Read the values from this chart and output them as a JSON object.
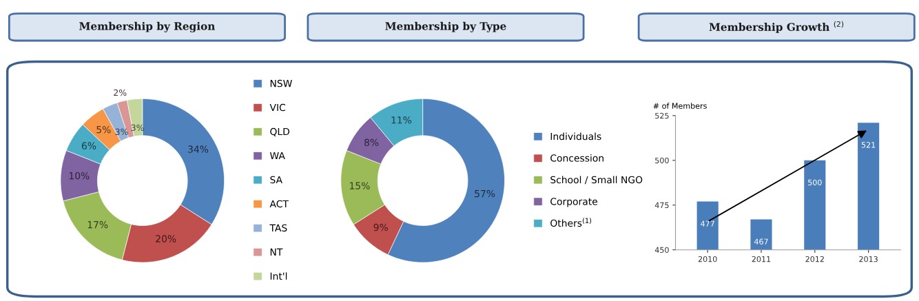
{
  "chart_data": [
    {
      "type": "donut",
      "title": "Membership by Region",
      "categories": [
        "NSW",
        "VIC",
        "QLD",
        "WA",
        "SA",
        "ACT",
        "TAS",
        "NT",
        "Int'l"
      ],
      "values": [
        34,
        20,
        17,
        10,
        6,
        5,
        3,
        2,
        3
      ],
      "value_labels": [
        "34%",
        "20%",
        "17%",
        "10%",
        "6%",
        "5%",
        "3%",
        "2%",
        "3%"
      ],
      "colors": [
        "#4f81bd",
        "#c0504d",
        "#9bbb59",
        "#8064a2",
        "#4bacc6",
        "#f79646",
        "#95b3d7",
        "#d99694",
        "#c3d69b"
      ],
      "legend": "right"
    },
    {
      "type": "donut",
      "title": "Membership by Type",
      "categories": [
        "Individuals",
        "Concession",
        "School / Small NGO",
        "Corporate",
        "Others$^{(1)}$"
      ],
      "values": [
        57,
        9,
        15,
        8,
        11
      ],
      "value_labels": [
        "57%",
        "9%",
        "15%",
        "8%",
        "11%"
      ],
      "colors": [
        "#4f81bd",
        "#c0504d",
        "#9bbb59",
        "#8064a2",
        "#4bacc6"
      ],
      "legend": "right"
    },
    {
      "type": "bar",
      "title": "Membership Growth $^{(2)}$",
      "ylabel": "# of Members",
      "categories": [
        "2010",
        "2011",
        "2012",
        "2013"
      ],
      "values": [
        477,
        467,
        500,
        521
      ],
      "color": "#4a7ebb",
      "ylim": [
        450,
        525
      ],
      "yticks": [
        450,
        475,
        500,
        525
      ],
      "data_labels": true,
      "grid": false
    }
  ]
}
